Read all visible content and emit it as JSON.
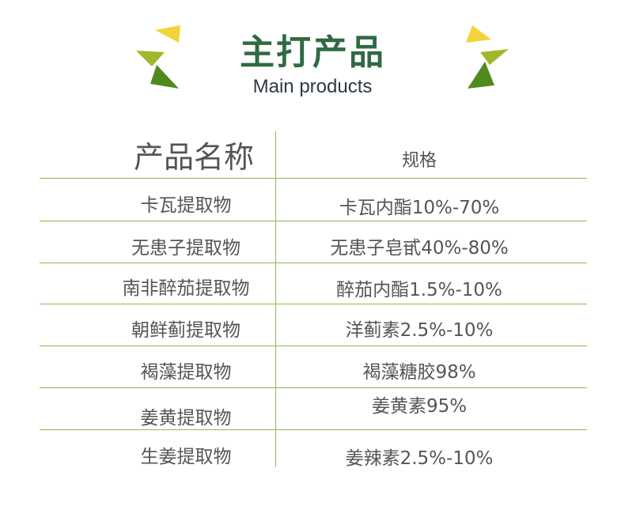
{
  "header": {
    "title": "主打产品",
    "subtitle": "Main products"
  },
  "table": {
    "headers": [
      "产品名称",
      "规格"
    ],
    "rows": [
      {
        "name": "卡瓦提取物",
        "spec": "卡瓦内酯10%-70%"
      },
      {
        "name": "无患子提取物",
        "spec": "无患子皂甙40%-80%"
      },
      {
        "name": "南非醉茄提取物",
        "spec": "醉茄内酯1.5%-10%"
      },
      {
        "name": "朝鲜蓟提取物",
        "spec": "洋蓟素2.5%-10%"
      },
      {
        "name": "褐藻提取物",
        "spec": "褐藻糖胶98%"
      },
      {
        "name": "姜黄提取物",
        "spec": "姜黄素95%"
      },
      {
        "name": "生姜提取物",
        "spec": "姜辣素2.5%-10%"
      }
    ]
  },
  "colors": {
    "title": "#2f6a43",
    "line": "#8dbb4f",
    "yellow": "#f2d43a",
    "lime": "#a3b72a",
    "green": "#4f8a1e"
  }
}
